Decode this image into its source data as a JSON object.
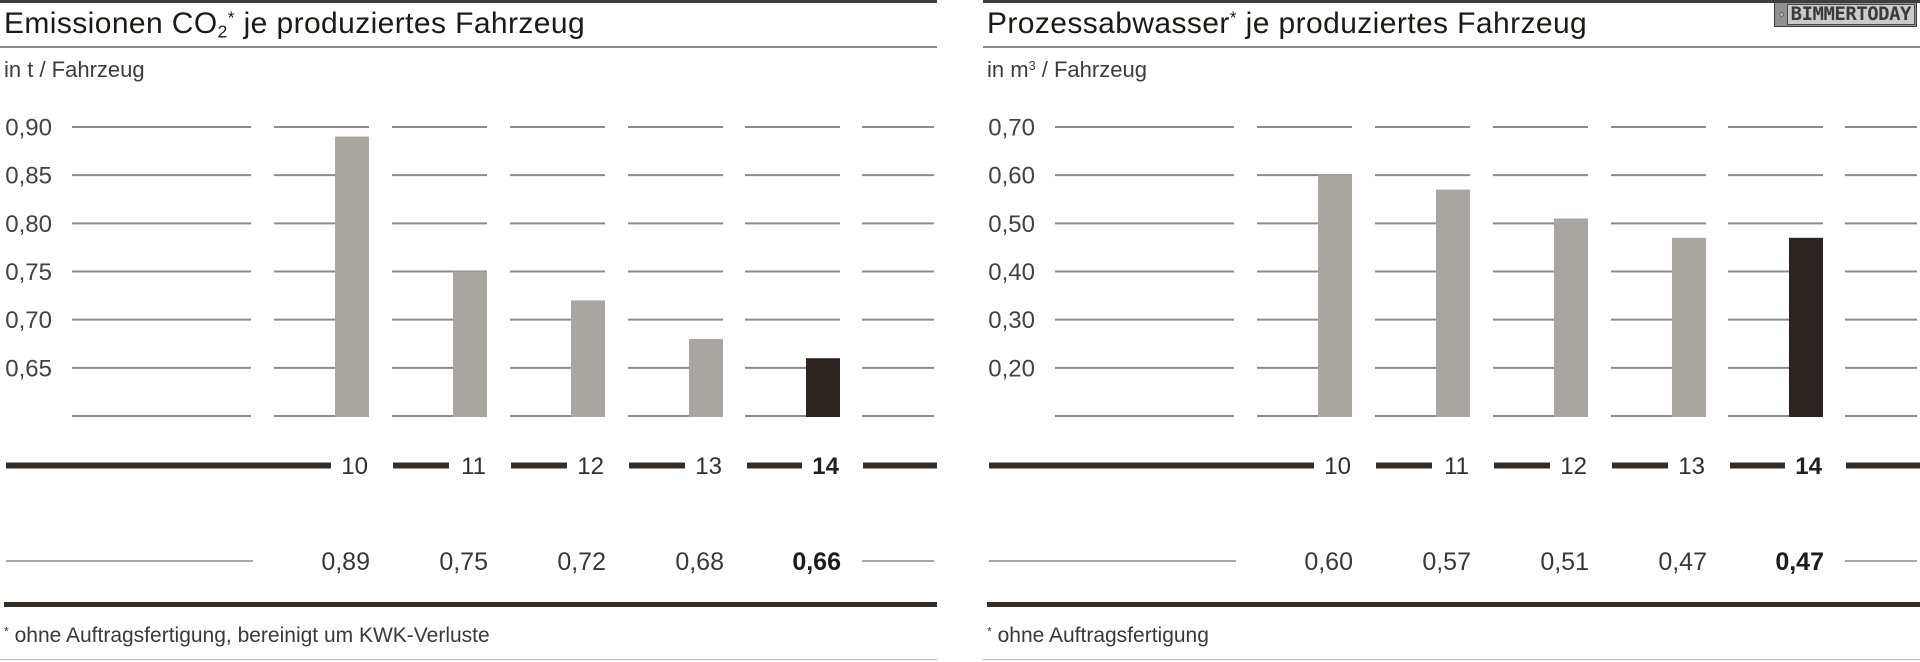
{
  "watermark": {
    "label": "BIMMERTODAY"
  },
  "colors": {
    "background": "#ffffff",
    "bar": "#a9a5a1",
    "bar_highlight": "#2c2420",
    "grid_line": "#8e8c8a",
    "leader_line": "#8e8c8a",
    "axis_line": "#342c26",
    "tick_text": "#45413d",
    "category_text": "#332e2a",
    "category_text_highlight": "#231f1c",
    "value_text": "#3b3733",
    "value_text_highlight": "#1f1b18",
    "title_text": "#1c1a18"
  },
  "chart_data": [
    {
      "type": "bar",
      "title": "Emissionen CO2* je produziertes Fahrzeug",
      "title_parts": [
        {
          "text": "Emissionen CO"
        },
        {
          "text": "2",
          "style": "sub"
        },
        {
          "text": "*",
          "style": "sup"
        },
        {
          "text": " je produziertes Fahrzeug"
        }
      ],
      "ylabel": "in t / Fahrzeug",
      "unit_parts": [
        {
          "text": "in t / Fahrzeug"
        }
      ],
      "categories": [
        "10",
        "11",
        "12",
        "13",
        "14"
      ],
      "values": [
        0.89,
        0.75,
        0.72,
        0.68,
        0.66
      ],
      "value_labels": [
        "0,89",
        "0,75",
        "0,72",
        "0,68",
        "0,66"
      ],
      "highlight_index": 4,
      "y_ticks": [
        {
          "value": 0.9,
          "label": "0,90"
        },
        {
          "value": 0.85,
          "label": "0,85"
        },
        {
          "value": 0.8,
          "label": "0,80"
        },
        {
          "value": 0.75,
          "label": "0,75"
        },
        {
          "value": 0.7,
          "label": "0,70"
        },
        {
          "value": 0.65,
          "label": "0,65"
        }
      ],
      "y_max": 0.9,
      "y_baseline": 0.6,
      "ylim": [
        0.6,
        0.9
      ],
      "grid": true,
      "legend": null,
      "footnote": "* ohne Auftragsfertigung, bereinigt um KWK-Verluste",
      "footnote_parts": [
        {
          "text": "*",
          "style": "sup"
        },
        {
          "text": " ohne Auftragsfertigung, bereinigt um KWK-Verluste"
        }
      ]
    },
    {
      "type": "bar",
      "title": "Prozessabwasser* je produziertes Fahrzeug",
      "title_parts": [
        {
          "text": "Prozessabwasser"
        },
        {
          "text": "*",
          "style": "sup"
        },
        {
          "text": " je produziertes Fahrzeug"
        }
      ],
      "ylabel": "in m3 / Fahrzeug",
      "unit_parts": [
        {
          "text": "in m"
        },
        {
          "text": "3",
          "style": "sup"
        },
        {
          "text": " / Fahrzeug"
        }
      ],
      "categories": [
        "10",
        "11",
        "12",
        "13",
        "14"
      ],
      "values": [
        0.6,
        0.57,
        0.51,
        0.47,
        0.47
      ],
      "value_labels": [
        "0,60",
        "0,57",
        "0,51",
        "0,47",
        "0,47"
      ],
      "highlight_index": 4,
      "y_ticks": [
        {
          "value": 0.7,
          "label": "0,70"
        },
        {
          "value": 0.6,
          "label": "0,60"
        },
        {
          "value": 0.5,
          "label": "0,50"
        },
        {
          "value": 0.4,
          "label": "0,40"
        },
        {
          "value": 0.3,
          "label": "0,30"
        },
        {
          "value": 0.2,
          "label": "0,20"
        }
      ],
      "y_max": 0.7,
      "y_baseline": 0.1,
      "ylim": [
        0.1,
        0.7
      ],
      "grid": true,
      "legend": null,
      "footnote": "* ohne Auftragsfertigung",
      "footnote_parts": [
        {
          "text": "*",
          "style": "sup"
        },
        {
          "text": " ohne Auftragsfertigung"
        }
      ]
    }
  ]
}
